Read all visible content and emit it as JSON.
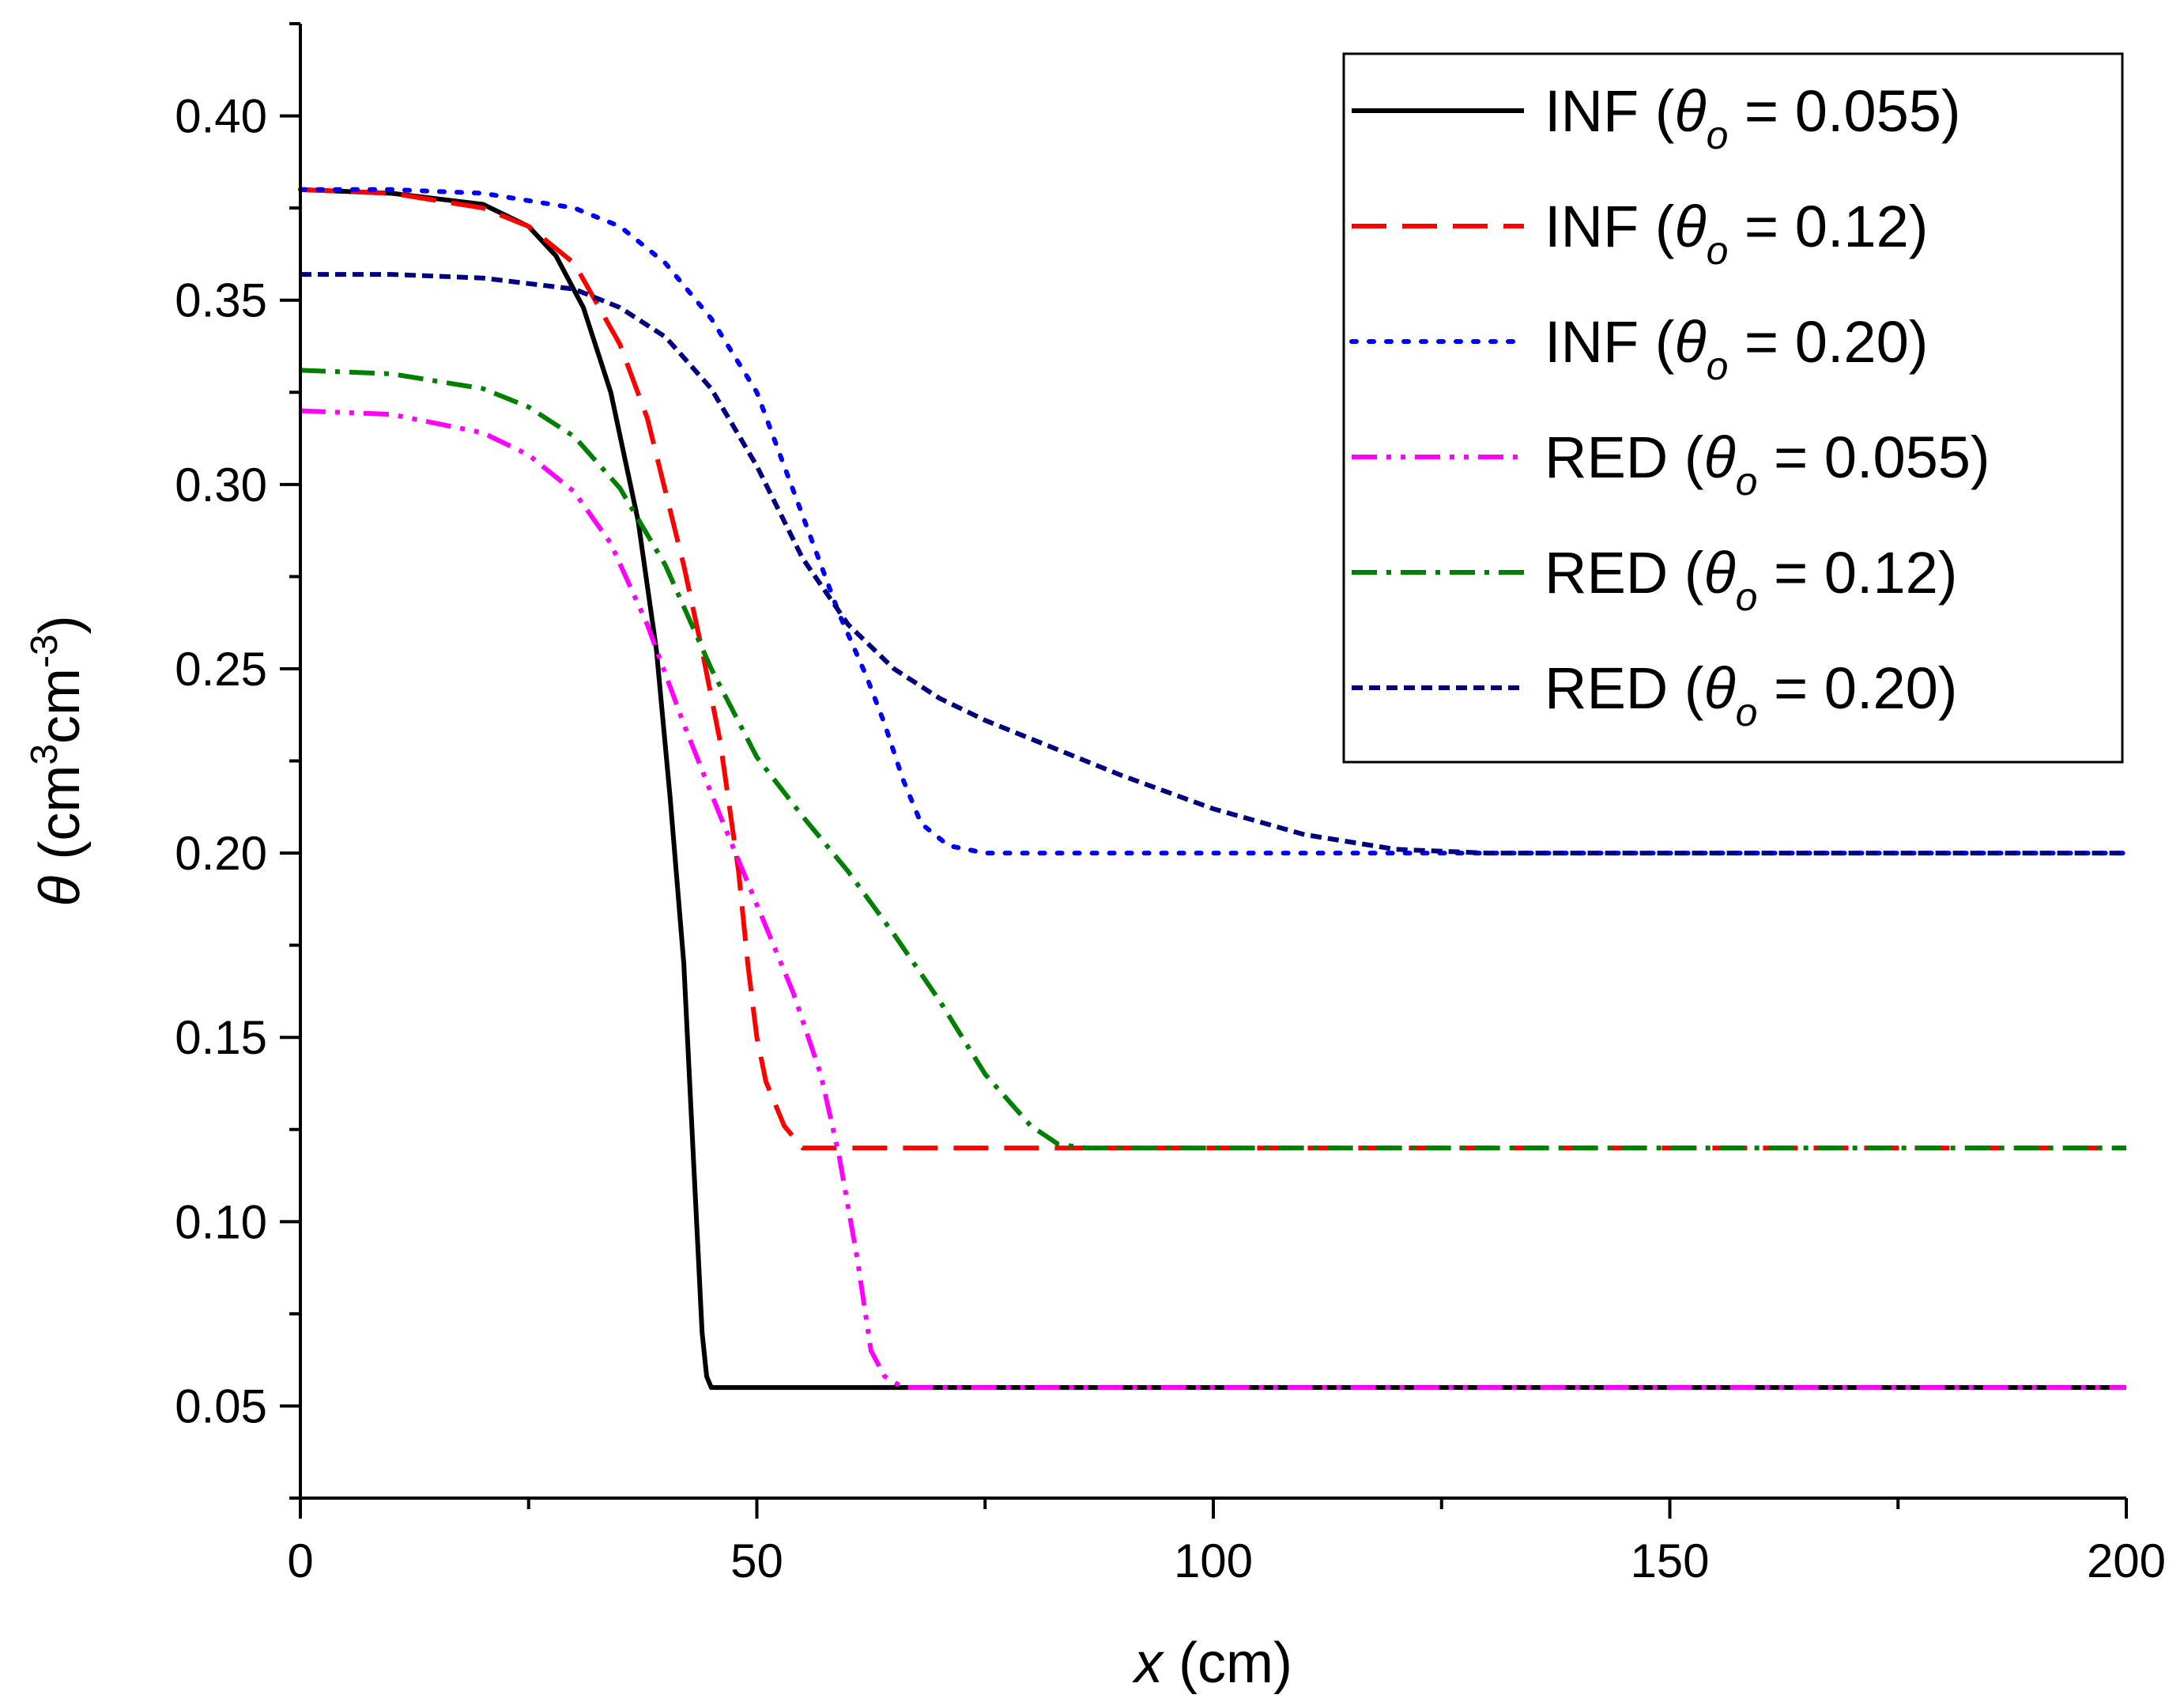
{
  "chart_data": {
    "type": "line",
    "title": "",
    "xlabel": {
      "var": "x",
      "unit": "(cm)"
    },
    "ylabel": {
      "var": "θ",
      "unit_open": "(cm",
      "sup1": "3",
      "unit_mid": "cm",
      "sup2": "-3",
      "unit_close": ")"
    },
    "xlim": [
      0,
      200
    ],
    "ylim": [
      0.025,
      0.425
    ],
    "x_ticks": [
      0,
      50,
      100,
      150,
      200
    ],
    "x_tick_labels": [
      "0",
      "50",
      "100",
      "150",
      "200"
    ],
    "y_ticks": [
      0.05,
      0.1,
      0.15,
      0.2,
      0.25,
      0.3,
      0.35,
      0.4
    ],
    "y_tick_labels": [
      "0.05",
      "0.10",
      "0.15",
      "0.20",
      "0.25",
      "0.30",
      "0.35",
      "0.40"
    ],
    "grid": false,
    "legend_position": "top-right",
    "series": [
      {
        "name": "INF (θo = 0.055)",
        "model": "INF",
        "theta_sym": "θ",
        "theta_sub": "o",
        "eq_value": "= 0.055)",
        "color": "#000000",
        "dash": "solid",
        "x": [
          0,
          10,
          20,
          25,
          28,
          31,
          34,
          37,
          39,
          40.5,
          42,
          43,
          43.6,
          44,
          44.5,
          45,
          60,
          100,
          150,
          200
        ],
        "y": [
          0.38,
          0.379,
          0.376,
          0.37,
          0.362,
          0.348,
          0.325,
          0.29,
          0.255,
          0.215,
          0.17,
          0.12,
          0.09,
          0.07,
          0.058,
          0.055,
          0.055,
          0.055,
          0.055,
          0.055
        ]
      },
      {
        "name": "INF (θo = 0.12)",
        "model": "INF",
        "theta_sym": "θ",
        "theta_sub": "o",
        "eq_value": "= 0.12)",
        "color": "#ff0000",
        "dash": "long-dash",
        "x": [
          0,
          10,
          20,
          25,
          30,
          35,
          38,
          40,
          42,
          44,
          46,
          48,
          49,
          50,
          51,
          53,
          55,
          60,
          100,
          150,
          200
        ],
        "y": [
          0.38,
          0.379,
          0.375,
          0.37,
          0.36,
          0.338,
          0.318,
          0.298,
          0.278,
          0.255,
          0.23,
          0.195,
          0.17,
          0.15,
          0.138,
          0.126,
          0.12,
          0.12,
          0.12,
          0.12,
          0.12
        ]
      },
      {
        "name": "INF (θo = 0.20)",
        "model": "INF",
        "theta_sym": "θ",
        "theta_sub": "o",
        "eq_value": "= 0.20)",
        "color": "#0000ff",
        "dash": "dot",
        "x": [
          0,
          10,
          20,
          30,
          35,
          40,
          45,
          50,
          53,
          56,
          59,
          62,
          64,
          66,
          68,
          71,
          75,
          90,
          150,
          200
        ],
        "y": [
          0.38,
          0.38,
          0.379,
          0.375,
          0.37,
          0.36,
          0.345,
          0.325,
          0.305,
          0.285,
          0.265,
          0.248,
          0.235,
          0.22,
          0.208,
          0.202,
          0.2,
          0.2,
          0.2,
          0.2
        ]
      },
      {
        "name": "RED (θo = 0.055)",
        "model": "RED",
        "theta_sym": "θ",
        "theta_sub": "o",
        "eq_value": "= 0.055)",
        "color": "#ff00ff",
        "dash": "dash-dot-dot",
        "x": [
          0,
          10,
          20,
          25,
          30,
          34,
          38,
          42,
          46,
          50,
          54,
          57,
          59,
          61,
          62.5,
          64,
          66,
          70,
          100,
          150,
          200
        ],
        "y": [
          0.32,
          0.319,
          0.314,
          0.308,
          0.298,
          0.284,
          0.262,
          0.235,
          0.21,
          0.186,
          0.162,
          0.14,
          0.118,
          0.09,
          0.065,
          0.058,
          0.055,
          0.055,
          0.055,
          0.055,
          0.055
        ]
      },
      {
        "name": "RED (θo = 0.12)",
        "model": "RED",
        "theta_sym": "θ",
        "theta_sub": "o",
        "eq_value": "= 0.12)",
        "color": "#008000",
        "dash": "dash-dot",
        "x": [
          0,
          10,
          20,
          25,
          30,
          35,
          40,
          45,
          50,
          55,
          60,
          65,
          70,
          75,
          80,
          83,
          86,
          90,
          100,
          150,
          200
        ],
        "y": [
          0.331,
          0.33,
          0.326,
          0.321,
          0.313,
          0.299,
          0.278,
          0.25,
          0.226,
          0.21,
          0.195,
          0.178,
          0.16,
          0.14,
          0.126,
          0.121,
          0.12,
          0.12,
          0.12,
          0.12,
          0.12
        ]
      },
      {
        "name": "RED (θo = 0.20)",
        "model": "RED",
        "theta_sym": "θ",
        "theta_sub": "o",
        "eq_value": "= 0.20)",
        "color": "#000080",
        "dash": "short-dash",
        "x": [
          0,
          10,
          20,
          30,
          35,
          40,
          45,
          50,
          55,
          60,
          65,
          70,
          75,
          80,
          90,
          100,
          110,
          120,
          130,
          150,
          200
        ],
        "y": [
          0.357,
          0.357,
          0.356,
          0.353,
          0.348,
          0.34,
          0.326,
          0.305,
          0.28,
          0.262,
          0.25,
          0.242,
          0.236,
          0.231,
          0.221,
          0.212,
          0.205,
          0.201,
          0.2,
          0.2,
          0.2
        ]
      }
    ]
  }
}
